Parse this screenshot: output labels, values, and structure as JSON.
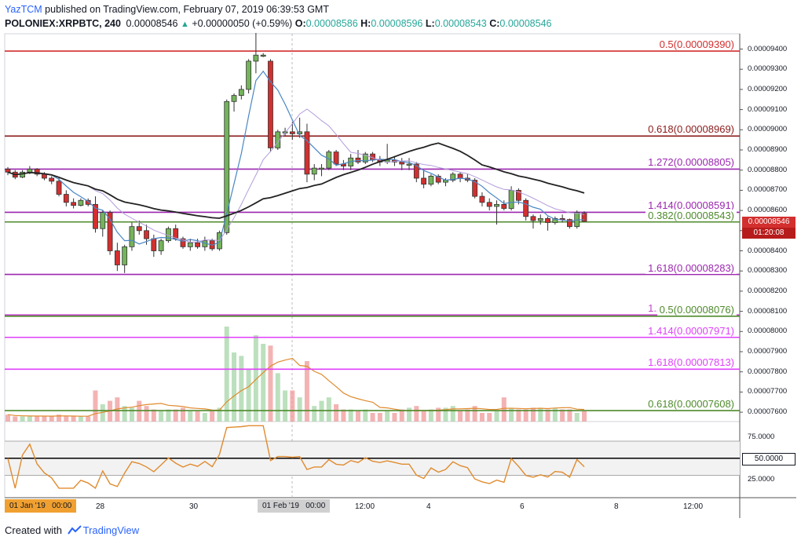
{
  "header": {
    "author": "YazTCM",
    "published_text": "published on TradingView.com, February 07, 2019 06:39:53 GMT",
    "symbol": "POLONIEX:XRPBTC, 240",
    "last": "0.00008546",
    "change": "+0.00000050 (+0.59%)",
    "o_label": "O:",
    "o": "0.00008586",
    "h_label": "H:",
    "h": "0.00008596",
    "l_label": "L:",
    "l": "0.00008543",
    "c_label": "C:",
    "c": "0.00008546"
  },
  "footer": {
    "created_with": "Created with",
    "brand": "TradingView"
  },
  "badges": {
    "price": "0.00008546",
    "countdown": "01:20:08",
    "rsi_level": "50.0000",
    "x_left": "01 Jan '19   00:00",
    "x_cursor": "01 Feb '19   00:00"
  },
  "colors": {
    "up": "#74b45b",
    "down": "#d32f2f",
    "sma": "#4a86c5",
    "ema_slow": "#b39ddb",
    "ma200": "#222222",
    "rsi": "#e08b2f",
    "vol_up": "#a5d6a7",
    "vol_down": "#ef9a9a",
    "fib_red": "#d32f2f",
    "fib_purple": "#9c27b0",
    "fib_green": "#4e8a2b",
    "fib_magenta": "#e040fb"
  },
  "chart_data": {
    "type": "candlestick",
    "symbol": "POLONIEX:XRPBTC",
    "interval": "240",
    "y_axis": {
      "range": [
        7.55e-05,
        9.55e-05
      ],
      "ticks": [
        "0.00009400",
        "0.00009300",
        "0.00009200",
        "0.00009100",
        "0.00009000",
        "0.00008900",
        "0.00008800",
        "0.00008700",
        "0.00008600",
        "0.00008500",
        "0.00008400",
        "0.00008300",
        "0.00008200",
        "0.00008100",
        "0.00008000",
        "0.00007900",
        "0.00007800",
        "0.00007700",
        "0.00007600"
      ]
    },
    "x_axis": {
      "ticks": [
        "28",
        "30",
        "01 Feb '19",
        "12:00",
        "4",
        "6",
        "8",
        "12:00"
      ]
    },
    "levels": [
      {
        "label": "0.5(0.00009390)",
        "price": 9.39e-05,
        "color": "#d32f2f"
      },
      {
        "label": "0.618(0.00008969)",
        "price": 8.969e-05,
        "color": "#8b1a1a"
      },
      {
        "label": "1.272(0.00008805)",
        "price": 8.805e-05,
        "color": "#9c27b0"
      },
      {
        "label": "1.414(0.00008591)",
        "price": 8.591e-05,
        "color": "#9c27b0"
      },
      {
        "label": "0.382(0.00008543)",
        "price": 8.543e-05,
        "color": "#4e8a2b"
      },
      {
        "label": "1.618(0.00008283)",
        "price": 8.283e-05,
        "color": "#9c27b0"
      },
      {
        "label": "1.272(0.00008082)",
        "price": 8.082e-05,
        "color": "#c048c8"
      },
      {
        "label": "0.5(0.00008076)",
        "price": 8.076e-05,
        "color": "#4e8a2b"
      },
      {
        "label": "1.414(0.00007971)",
        "price": 7.971e-05,
        "color": "#e040fb"
      },
      {
        "label": "1.618(0.00007813)",
        "price": 7.813e-05,
        "color": "#e040fb"
      },
      {
        "label": "0.618(0.00007608)",
        "price": 7.608e-05,
        "color": "#4e8a2b"
      }
    ],
    "candles": [
      [
        8805,
        8815,
        8775,
        8790
      ],
      [
        8790,
        8800,
        8755,
        8765
      ],
      [
        8765,
        8800,
        8760,
        8790
      ],
      [
        8790,
        8820,
        8780,
        8805
      ],
      [
        8805,
        8810,
        8770,
        8780
      ],
      [
        8780,
        8790,
        8750,
        8760
      ],
      [
        8760,
        8770,
        8730,
        8745
      ],
      [
        8745,
        8760,
        8670,
        8680
      ],
      [
        8680,
        8700,
        8620,
        8640
      ],
      [
        8640,
        8660,
        8610,
        8625
      ],
      [
        8625,
        8660,
        8620,
        8650
      ],
      [
        8650,
        8660,
        8620,
        8630
      ],
      [
        8630,
        8670,
        8490,
        8510
      ],
      [
        8510,
        8600,
        8470,
        8590
      ],
      [
        8590,
        8600,
        8380,
        8400
      ],
      [
        8400,
        8440,
        8300,
        8330
      ],
      [
        8330,
        8430,
        8290,
        8420
      ],
      [
        8420,
        8540,
        8400,
        8520
      ],
      [
        8520,
        8550,
        8480,
        8500
      ],
      [
        8500,
        8530,
        8430,
        8460
      ],
      [
        8460,
        8480,
        8370,
        8400
      ],
      [
        8400,
        8460,
        8380,
        8450
      ],
      [
        8450,
        8520,
        8440,
        8510
      ],
      [
        8510,
        8530,
        8450,
        8460
      ],
      [
        8460,
        8470,
        8410,
        8420
      ],
      [
        8420,
        8460,
        8400,
        8440
      ],
      [
        8440,
        8460,
        8410,
        8420
      ],
      [
        8420,
        8470,
        8400,
        8450
      ],
      [
        8450,
        8460,
        8400,
        8410
      ],
      [
        8410,
        8500,
        8400,
        8490
      ],
      [
        8490,
        9150,
        8480,
        9140
      ],
      [
        9140,
        9180,
        9090,
        9170
      ],
      [
        9170,
        9220,
        9150,
        9200
      ],
      [
        9200,
        9350,
        9180,
        9340
      ],
      [
        9340,
        9480,
        9280,
        9370
      ],
      [
        9370,
        9380,
        9360,
        9370
      ],
      [
        9340,
        9350,
        8890,
        8910
      ],
      [
        8910,
        9000,
        8900,
        8990
      ],
      [
        8990,
        9010,
        8970,
        8990
      ],
      [
        8990,
        9040,
        8950,
        8980
      ],
      [
        8980,
        9060,
        8960,
        8990
      ],
      [
        8990,
        9030,
        8740,
        8780
      ],
      [
        8780,
        8830,
        8750,
        8810
      ],
      [
        8810,
        8830,
        8770,
        8810
      ],
      [
        8810,
        8900,
        8800,
        8890
      ],
      [
        8890,
        8900,
        8820,
        8830
      ],
      [
        8830,
        8850,
        8800,
        8820
      ],
      [
        8820,
        8880,
        8800,
        8860
      ],
      [
        8860,
        8900,
        8830,
        8840
      ],
      [
        8840,
        8890,
        8830,
        8880
      ],
      [
        8880,
        8890,
        8840,
        8850
      ],
      [
        8850,
        8870,
        8820,
        8840
      ],
      [
        8840,
        8930,
        8830,
        8850
      ],
      [
        8850,
        8870,
        8820,
        8840
      ],
      [
        8840,
        8860,
        8800,
        8830
      ],
      [
        8830,
        8860,
        8800,
        8830
      ],
      [
        8830,
        8840,
        8740,
        8760
      ],
      [
        8760,
        8800,
        8710,
        8730
      ],
      [
        8730,
        8780,
        8720,
        8770
      ],
      [
        8770,
        8780,
        8730,
        8740
      ],
      [
        8740,
        8760,
        8720,
        8750
      ],
      [
        8750,
        8790,
        8740,
        8780
      ],
      [
        8780,
        8790,
        8740,
        8760
      ],
      [
        8760,
        8780,
        8740,
        8750
      ],
      [
        8750,
        8760,
        8660,
        8670
      ],
      [
        8670,
        8690,
        8620,
        8640
      ],
      [
        8640,
        8660,
        8600,
        8620
      ],
      [
        8620,
        8650,
        8530,
        8630
      ],
      [
        8630,
        8650,
        8600,
        8610
      ],
      [
        8610,
        8720,
        8600,
        8700
      ],
      [
        8700,
        8710,
        8630,
        8650
      ],
      [
        8650,
        8660,
        8550,
        8570
      ],
      [
        8570,
        8580,
        8510,
        8550
      ],
      [
        8550,
        8580,
        8530,
        8560
      ],
      [
        8560,
        8570,
        8500,
        8540
      ],
      [
        8540,
        8570,
        8530,
        8560
      ],
      [
        8560,
        8580,
        8540,
        8555
      ],
      [
        8555,
        8560,
        8510,
        8520
      ],
      [
        8520,
        8600,
        8510,
        8590
      ],
      [
        8586,
        8596,
        8543,
        8546
      ]
    ],
    "volume": [
      4,
      3,
      3,
      3,
      3,
      3,
      3,
      4,
      3,
      3,
      3,
      3,
      18,
      10,
      12,
      14,
      9,
      8,
      12,
      9,
      7,
      6,
      7,
      7,
      8,
      6,
      6,
      5,
      6,
      8,
      55,
      40,
      38,
      30,
      50,
      45,
      44,
      28,
      18,
      18,
      14,
      35,
      9,
      12,
      14,
      10,
      7,
      7,
      6,
      7,
      5,
      5,
      6,
      5,
      7,
      8,
      9,
      6,
      7,
      8,
      8,
      9,
      6,
      7,
      9,
      5,
      5,
      6,
      14,
      8,
      7,
      7,
      8,
      8,
      7,
      8,
      7,
      7,
      5,
      6
    ],
    "rsi": {
      "levels": [
        70,
        50,
        30
      ],
      "ticks": [
        "75.0000",
        "50.0000",
        "25.0000"
      ],
      "last": 44
    }
  }
}
